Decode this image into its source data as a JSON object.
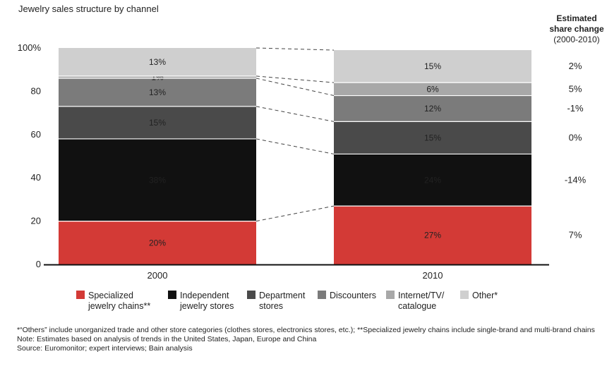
{
  "chart_data": {
    "type": "bar",
    "stacked": true,
    "title": "Jewelry sales structure by channel",
    "categories": [
      "2000",
      "2010"
    ],
    "ylim": [
      0,
      100
    ],
    "y_ticks": [
      "0",
      "20",
      "40",
      "60",
      "80",
      "100%"
    ],
    "series": [
      {
        "name": "Specialized jewelry chains**",
        "legend_lines": [
          "Specialized",
          "jewelry chains**"
        ],
        "color": "#d33a36",
        "values": [
          20,
          27
        ],
        "labels": [
          "20%",
          "27%"
        ],
        "share_change": "7%"
      },
      {
        "name": "Independent jewelry stores",
        "legend_lines": [
          "Independent",
          "jewelry stores"
        ],
        "color": "#111111",
        "values": [
          38,
          24
        ],
        "labels": [
          "38%",
          "24%"
        ],
        "share_change": "-14%"
      },
      {
        "name": "Department stores",
        "legend_lines": [
          "Department",
          "stores"
        ],
        "color": "#4a4a4a",
        "values": [
          15,
          15
        ],
        "labels": [
          "15%",
          "15%"
        ],
        "share_change": "0%"
      },
      {
        "name": "Discounters",
        "legend_lines": [
          "Discounters"
        ],
        "color": "#7b7b7b",
        "values": [
          13,
          12
        ],
        "labels": [
          "13%",
          "12%"
        ],
        "share_change": "-1%"
      },
      {
        "name": "Internet/TV/catalogue",
        "legend_lines": [
          "Internet/TV/",
          "catalogue"
        ],
        "color": "#a8a8a8",
        "values": [
          1,
          6
        ],
        "labels": [
          "1%",
          "6%"
        ],
        "share_change": "5%"
      },
      {
        "name": "Other*",
        "legend_lines": [
          "Other*"
        ],
        "color": "#cfcfcf",
        "values": [
          13,
          15
        ],
        "labels": [
          "13%",
          "15%"
        ],
        "share_change": "2%"
      }
    ],
    "share_change_header": [
      "Estimated",
      "share change",
      "(2000-2010)"
    ],
    "legend_position": "bottom",
    "grid": false
  },
  "notes": [
    "*“Others” include unorganized trade and other store categories (clothes stores, electronics stores, etc.); **Specialized jewelry chains include single-brand and multi-brand chains",
    "Note: Estimates based on analysis of trends in the United States, Japan, Europe and China",
    "Source: Euromonitor; expert interviews; Bain analysis"
  ]
}
